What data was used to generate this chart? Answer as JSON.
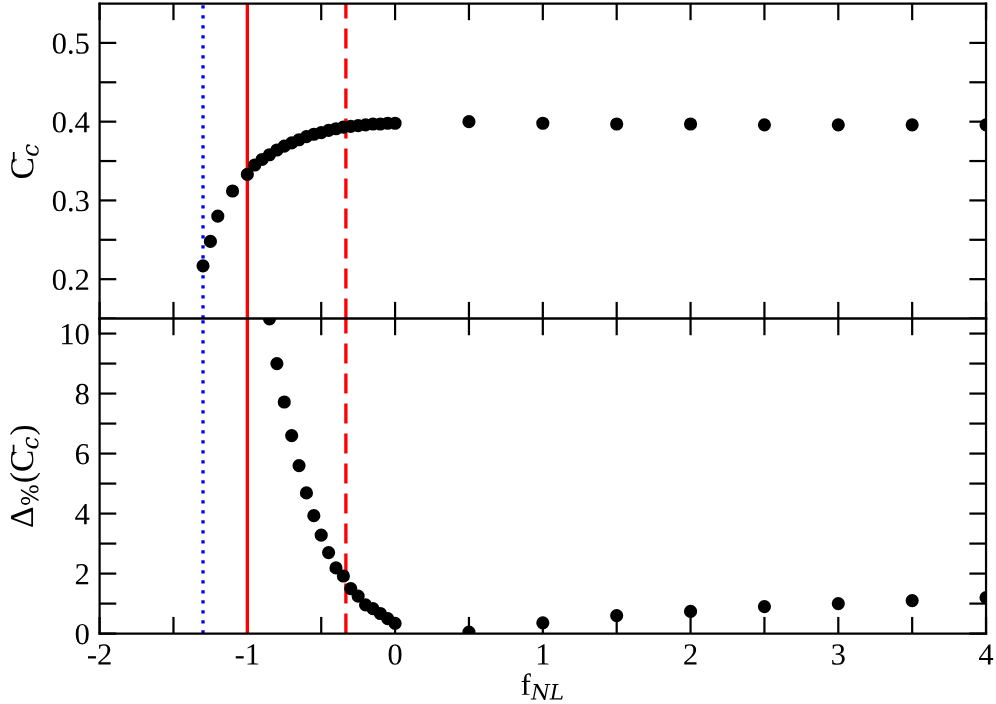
{
  "chart_data": [
    {
      "type": "scatter",
      "ylabel": "C̄$_{c}$",
      "x": [
        -1.3,
        -1.25,
        -1.2,
        -1.1,
        -1.0,
        -0.95,
        -0.9,
        -0.85,
        -0.8,
        -0.75,
        -0.7,
        -0.65,
        -0.6,
        -0.55,
        -0.5,
        -0.45,
        -0.4,
        -0.35,
        -0.3,
        -0.25,
        -0.2,
        -0.15,
        -0.1,
        -0.05,
        0,
        0.5,
        1,
        1.5,
        2,
        2.5,
        3,
        3.5,
        4
      ],
      "series": [
        {
          "color": "#000000",
          "values": [
            0.217,
            0.248,
            0.28,
            0.312,
            0.333,
            0.345,
            0.352,
            0.358,
            0.364,
            0.369,
            0.373,
            0.377,
            0.381,
            0.384,
            0.386,
            0.389,
            0.391,
            0.393,
            0.394,
            0.395,
            0.396,
            0.397,
            0.397,
            0.398,
            0.398,
            0.4,
            0.398,
            0.397,
            0.397,
            0.396,
            0.396,
            0.396,
            0.396
          ]
        }
      ],
      "marker": "circle",
      "xlim": [
        -2,
        4
      ],
      "ylim": [
        0.15,
        0.55
      ],
      "xticks": [
        {
          "value": -2,
          "label": null
        },
        {
          "value": -1.5,
          "label": null
        },
        {
          "value": -1,
          "label": null
        },
        {
          "value": -0.5,
          "label": null
        },
        {
          "value": 0,
          "label": null
        },
        {
          "value": 0.5,
          "label": null
        },
        {
          "value": 1,
          "label": null
        },
        {
          "value": 1.5,
          "label": null
        },
        {
          "value": 2,
          "label": null
        },
        {
          "value": 2.5,
          "label": null
        },
        {
          "value": 3,
          "label": null
        },
        {
          "value": 3.5,
          "label": null
        },
        {
          "value": 4,
          "label": null
        }
      ],
      "yticks": [
        {
          "value": 0.15,
          "label": null
        },
        0.2,
        {
          "value": 0.25,
          "label": null
        },
        0.3,
        {
          "value": 0.35,
          "label": null
        },
        0.4,
        {
          "value": 0.45,
          "label": null
        },
        0.5
      ],
      "tick_labels": "y",
      "grid": false,
      "legend": false,
      "ref_lines": [
        {
          "axis": "x",
          "value": -1.3,
          "color": "#0000ff",
          "line_style": "dotted"
        },
        {
          "axis": "x",
          "value": -1,
          "color": "#ff0000",
          "line_style": "solid"
        },
        {
          "axis": "x",
          "value": -0.333,
          "color": "#ff0000",
          "line_style": "dashed"
        }
      ]
    },
    {
      "type": "scatter",
      "xlabel": "f$_{NL}$",
      "ylabel": "Δ$_{%}$(C̄$_{c}$)",
      "x": [
        -0.85,
        -0.8,
        -0.75,
        -0.7,
        -0.65,
        -0.6,
        -0.55,
        -0.5,
        -0.45,
        -0.4,
        -0.35,
        -0.3,
        -0.25,
        -0.2,
        -0.15,
        -0.1,
        -0.05,
        0,
        0.5,
        1,
        1.5,
        2,
        2.5,
        3,
        3.5,
        4
      ],
      "series": [
        {
          "color": "#000000",
          "values": [
            10.49,
            9.0,
            7.72,
            6.6,
            5.6,
            4.69,
            3.93,
            3.28,
            2.7,
            2.19,
            1.92,
            1.5,
            1.25,
            0.96,
            0.83,
            0.67,
            0.5,
            0.34,
            0.05,
            0.36,
            0.6,
            0.74,
            0.9,
            1.0,
            1.1,
            1.2
          ]
        }
      ],
      "marker": "circle",
      "xlim": [
        -2,
        4
      ],
      "ylim": [
        0,
        10.5
      ],
      "xticks": [
        -2,
        {
          "value": -1.5,
          "label": null
        },
        -1,
        {
          "value": -0.5,
          "label": null
        },
        0,
        {
          "value": 0.5,
          "label": null
        },
        1,
        {
          "value": 1.5,
          "label": null
        },
        2,
        {
          "value": 2.5,
          "label": null
        },
        3,
        {
          "value": 3.5,
          "label": null
        },
        4
      ],
      "yticks": [
        0,
        {
          "value": 1,
          "label": null
        },
        2,
        {
          "value": 3,
          "label": null
        },
        4,
        {
          "value": 5,
          "label": null
        },
        6,
        {
          "value": 7,
          "label": null
        },
        8,
        {
          "value": 9,
          "label": null
        },
        10
      ],
      "grid": false,
      "legend": false,
      "ref_lines": [
        {
          "axis": "x",
          "value": -1.3,
          "color": "#0000ff",
          "line_style": "dotted"
        },
        {
          "axis": "x",
          "value": -1,
          "color": "#ff0000",
          "line_style": "solid"
        },
        {
          "axis": "x",
          "value": -0.333,
          "color": "#ff0000",
          "line_style": "dashed"
        }
      ]
    }
  ]
}
